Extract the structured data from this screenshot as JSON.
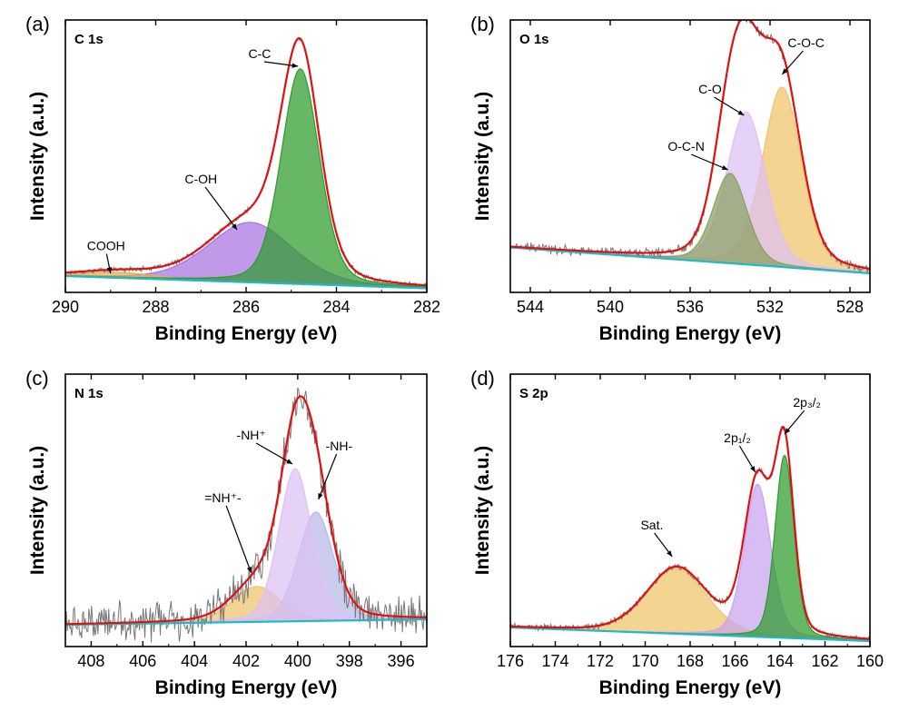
{
  "chart_data": [
    {
      "id": "a",
      "panel_label": "(a)",
      "core_level": "C 1s",
      "type": "line",
      "xlabel": "Binding Energy (eV)",
      "ylabel": "Intensity (a.u.)",
      "xlim": [
        290,
        282
      ],
      "x_reversed": true,
      "xticks": [
        290,
        288,
        286,
        284,
        282
      ],
      "ylim": [
        0,
        1.0
      ],
      "baseline": {
        "y0": 0.06,
        "y1": 0.015,
        "color": "#21b8c8"
      },
      "components": [
        {
          "label": "C-C",
          "center": 284.8,
          "fwhm": 1.0,
          "height": 0.79,
          "color": "#2d9b2d",
          "label_at": [
            285.7,
            0.86
          ],
          "arrow_to": [
            284.85,
            0.83
          ]
        },
        {
          "label": "C-OH",
          "center": 285.9,
          "fwhm": 2.2,
          "height": 0.22,
          "color": "#a872e0",
          "label_at": [
            287.0,
            0.4
          ],
          "arrow_to": [
            286.2,
            0.23
          ]
        },
        {
          "label": "COOH",
          "center": 288.8,
          "fwhm": 2.0,
          "height": 0.02,
          "color": "#e0b050",
          "label_at": [
            289.1,
            0.155
          ],
          "arrow_to": [
            289.0,
            0.07
          ]
        }
      ],
      "noise": 0.006,
      "envelope_color": "#e01010",
      "raw_color": "#777777"
    },
    {
      "id": "b",
      "panel_label": "(b)",
      "core_level": "O 1s",
      "type": "line",
      "xlabel": "Binding Energy (eV)",
      "ylabel": "Intensity (a.u.)",
      "xlim": [
        545,
        527
      ],
      "x_reversed": true,
      "xticks": [
        544,
        540,
        536,
        532,
        528
      ],
      "ylim": [
        0,
        1.0
      ],
      "baseline": {
        "y0": 0.165,
        "y1": 0.07,
        "color": "#21b8c8"
      },
      "components": [
        {
          "label": "C-O-C",
          "center": 531.4,
          "fwhm": 2.3,
          "height": 0.66,
          "color": "#eec36a",
          "label_at": [
            530.2,
            0.9
          ],
          "arrow_to": [
            531.4,
            0.8
          ]
        },
        {
          "label": "C-O",
          "center": 533.2,
          "fwhm": 2.3,
          "height": 0.56,
          "color": "#dcc0f2",
          "label_at": [
            535.0,
            0.73
          ],
          "arrow_to": [
            533.3,
            0.65
          ]
        },
        {
          "label": "O-C-N",
          "center": 534.0,
          "fwhm": 2.0,
          "height": 0.33,
          "color": "#8aa060",
          "label_at": [
            536.2,
            0.52
          ],
          "arrow_to": [
            534.1,
            0.45
          ]
        }
      ],
      "noise": 0.012,
      "envelope_color": "#e01010",
      "raw_color": "#777777"
    },
    {
      "id": "c",
      "panel_label": "(c)",
      "core_level": "N 1s",
      "type": "line",
      "xlabel": "Binding Energy (eV)",
      "ylabel": "Intensity (a.u.)",
      "xlim": [
        409,
        395
      ],
      "x_reversed": true,
      "xticks": [
        408,
        406,
        404,
        402,
        400,
        398,
        396
      ],
      "ylim": [
        0,
        1.0
      ],
      "baseline": {
        "y0": 0.08,
        "y1": 0.1,
        "color": "#21b8c8"
      },
      "components": [
        {
          "label": "-NH-",
          "center": 399.3,
          "fwhm": 1.6,
          "height": 0.4,
          "color": "#b8b8e8",
          "label_at": [
            398.4,
            0.72
          ],
          "arrow_to": [
            399.2,
            0.54
          ]
        },
        {
          "label": "-NH⁺",
          "center": 400.1,
          "fwhm": 1.5,
          "height": 0.56,
          "color": "#dcc0f2",
          "label_at": [
            401.8,
            0.76
          ],
          "arrow_to": [
            400.2,
            0.67
          ]
        },
        {
          "label": "=NH⁺-",
          "center": 401.6,
          "fwhm": 2.2,
          "height": 0.13,
          "color": "#eec36a",
          "label_at": [
            402.9,
            0.53
          ],
          "arrow_to": [
            401.8,
            0.27
          ]
        }
      ],
      "noise": 0.05,
      "envelope_color": "#e01010",
      "raw_color": "#777777"
    },
    {
      "id": "d",
      "panel_label": "(d)",
      "core_level": "S 2p",
      "type": "line",
      "xlabel": "Binding Energy (eV)",
      "ylabel": "Intensity (a.u.)",
      "xlim": [
        176,
        160
      ],
      "x_reversed": true,
      "xticks": [
        176,
        174,
        172,
        170,
        168,
        166,
        164,
        162,
        160
      ],
      "ylim": [
        0,
        1.0
      ],
      "baseline": {
        "y0": 0.07,
        "y1": 0.02,
        "color": "#21b8c8"
      },
      "components": [
        {
          "label": "2p₃/₂",
          "center": 163.8,
          "fwhm": 1.0,
          "height": 0.67,
          "color": "#2d9b2d",
          "label_at": [
            162.8,
            0.88
          ],
          "arrow_to": [
            163.8,
            0.78
          ]
        },
        {
          "label": "2p₁/₂",
          "center": 165.0,
          "fwhm": 1.4,
          "height": 0.56,
          "color": "#c8a4f0",
          "label_at": [
            165.9,
            0.75
          ],
          "arrow_to": [
            165.1,
            0.64
          ]
        },
        {
          "label": "Sat.",
          "center": 168.6,
          "fwhm": 3.2,
          "height": 0.24,
          "color": "#eec36a",
          "label_at": [
            169.7,
            0.43
          ],
          "arrow_to": [
            168.8,
            0.33
          ]
        }
      ],
      "noise": 0.008,
      "envelope_color": "#e01010",
      "raw_color": "#777777"
    }
  ]
}
